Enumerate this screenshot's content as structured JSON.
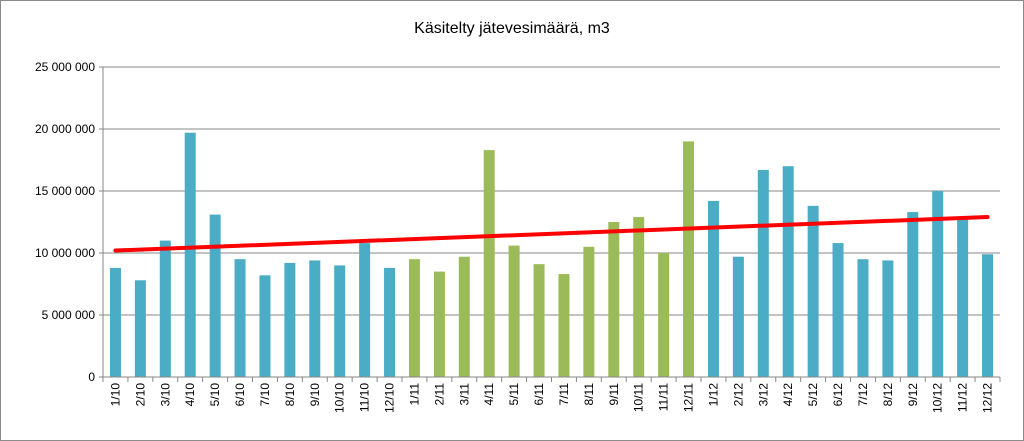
{
  "chart_data": {
    "type": "bar",
    "title": "Käsitelty jätevesimäärä, m3",
    "xlabel": "",
    "ylabel": "",
    "ylim": [
      0,
      25000000
    ],
    "yticks": [
      0,
      5000000,
      10000000,
      15000000,
      20000000,
      25000000
    ],
    "ytick_labels": [
      "0",
      "5 000 000",
      "10 000 000",
      "15 000 000",
      "20 000 000",
      "25 000 000"
    ],
    "grid": true,
    "categories": [
      "1/10",
      "2/10",
      "3/10",
      "4/10",
      "5/10",
      "6/10",
      "7/10",
      "8/10",
      "9/10",
      "10/10",
      "11/10",
      "12/10",
      "1/11",
      "2/11",
      "3/11",
      "4/11",
      "5/11",
      "6/11",
      "7/11",
      "8/11",
      "9/11",
      "10/11",
      "11/11",
      "12/11",
      "1/12",
      "2/12",
      "3/12",
      "4/12",
      "5/12",
      "6/12",
      "7/12",
      "8/12",
      "9/12",
      "10/12",
      "11/12",
      "12/12"
    ],
    "values": [
      8800000,
      7800000,
      11000000,
      19700000,
      13100000,
      9500000,
      8200000,
      9200000,
      9400000,
      9000000,
      10800000,
      8800000,
      9500000,
      8500000,
      9700000,
      18300000,
      10600000,
      9100000,
      8300000,
      10500000,
      12500000,
      12900000,
      10000000,
      19000000,
      14200000,
      9700000,
      16700000,
      17000000,
      13800000,
      10800000,
      9500000,
      9400000,
      13300000,
      15000000,
      12700000,
      9900000
    ],
    "bar_colors": [
      "#4bacc6",
      "#4bacc6",
      "#4bacc6",
      "#4bacc6",
      "#4bacc6",
      "#4bacc6",
      "#4bacc6",
      "#4bacc6",
      "#4bacc6",
      "#4bacc6",
      "#4bacc6",
      "#4bacc6",
      "#9bbb59",
      "#9bbb59",
      "#9bbb59",
      "#9bbb59",
      "#9bbb59",
      "#9bbb59",
      "#9bbb59",
      "#9bbb59",
      "#9bbb59",
      "#9bbb59",
      "#9bbb59",
      "#9bbb59",
      "#4bacc6",
      "#4bacc6",
      "#4bacc6",
      "#4bacc6",
      "#4bacc6",
      "#4bacc6",
      "#4bacc6",
      "#4bacc6",
      "#4bacc6",
      "#4bacc6",
      "#4bacc6",
      "#4bacc6"
    ],
    "trendline": {
      "start": 10200000,
      "end": 12900000,
      "color": "#ff0000"
    },
    "gridline_color": "#878787",
    "legend": "none"
  }
}
